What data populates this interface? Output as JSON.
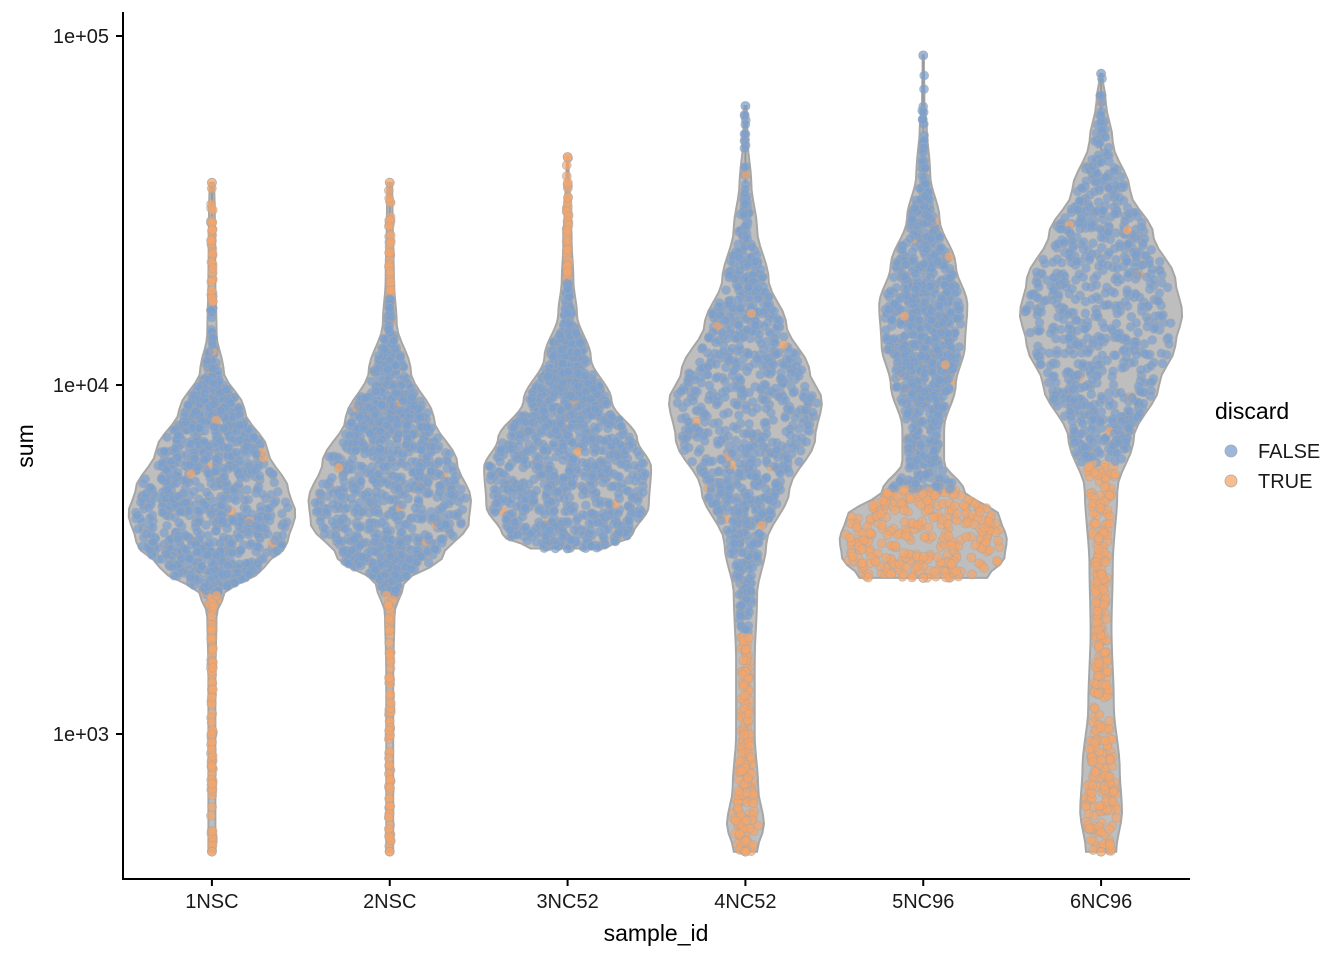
{
  "chart_data": {
    "type": "violin",
    "xlabel": "sample_id",
    "ylabel": "sum",
    "y_scale": "log10",
    "ylim": [
      380,
      115000
    ],
    "y_ticks": [
      {
        "value": 1000,
        "label": "1e+03"
      },
      {
        "value": 10000,
        "label": "1e+04"
      },
      {
        "value": 100000,
        "label": "1e+05"
      }
    ],
    "categories": [
      "1NSC",
      "2NSC",
      "3NC52",
      "4NC52",
      "5NC96",
      "6NC96"
    ],
    "grid": false,
    "legend": {
      "title": "discard",
      "placement": "right",
      "entries": [
        {
          "label": "FALSE",
          "color": "#7b9fcf"
        },
        {
          "label": "TRUE",
          "color": "#f5a56a"
        }
      ]
    },
    "colors": {
      "false": "#7b9fcf",
      "true": "#f5a56a",
      "violin_fill": "#b3b3b3",
      "violin_outline": "#a6a6a6"
    },
    "violins": [
      {
        "sample_id": "1NSC",
        "min": 460,
        "max": 38000,
        "density": [
          [
            460,
            0.03
          ],
          [
            800,
            0.03
          ],
          [
            1500,
            0.03
          ],
          [
            2200,
            0.04
          ],
          [
            2500,
            0.1
          ],
          [
            3000,
            0.45
          ],
          [
            3500,
            0.65
          ],
          [
            4300,
            0.72
          ],
          [
            5000,
            0.66
          ],
          [
            6500,
            0.48
          ],
          [
            8500,
            0.28
          ],
          [
            11000,
            0.1
          ],
          [
            14000,
            0.04
          ],
          [
            20000,
            0.03
          ],
          [
            30000,
            0.025
          ],
          [
            38000,
            0.02
          ]
        ],
        "discard_threshold_low": 2500,
        "discard_threshold_high": 17000
      },
      {
        "sample_id": "2NSC",
        "min": 460,
        "max": 38000,
        "density": [
          [
            460,
            0.03
          ],
          [
            900,
            0.03
          ],
          [
            1500,
            0.03
          ],
          [
            2200,
            0.04
          ],
          [
            2700,
            0.12
          ],
          [
            3200,
            0.45
          ],
          [
            4000,
            0.68
          ],
          [
            4700,
            0.7
          ],
          [
            6000,
            0.58
          ],
          [
            8000,
            0.38
          ],
          [
            11000,
            0.18
          ],
          [
            15000,
            0.06
          ],
          [
            20000,
            0.035
          ],
          [
            30000,
            0.025
          ],
          [
            38000,
            0.02
          ]
        ],
        "discard_threshold_low": 2500,
        "discard_threshold_high": 18000
      },
      {
        "sample_id": "3NC52",
        "min": 3400,
        "max": 45000,
        "density": [
          [
            3400,
            0.32
          ],
          [
            3700,
            0.56
          ],
          [
            4500,
            0.7
          ],
          [
            5800,
            0.72
          ],
          [
            7000,
            0.6
          ],
          [
            9000,
            0.38
          ],
          [
            12000,
            0.2
          ],
          [
            16000,
            0.08
          ],
          [
            20000,
            0.05
          ],
          [
            26000,
            0.035
          ],
          [
            32000,
            0.025
          ],
          [
            40000,
            0.01
          ],
          [
            45000,
            0.005
          ]
        ],
        "discard_threshold_low": 0,
        "discard_threshold_high": 20000
      },
      {
        "sample_id": "4NC52",
        "min": 460,
        "max": 63000,
        "density": [
          [
            460,
            0.1
          ],
          [
            550,
            0.16
          ],
          [
            700,
            0.11
          ],
          [
            1000,
            0.08
          ],
          [
            1600,
            0.08
          ],
          [
            2500,
            0.1
          ],
          [
            3500,
            0.18
          ],
          [
            5000,
            0.38
          ],
          [
            7000,
            0.6
          ],
          [
            9000,
            0.66
          ],
          [
            11000,
            0.55
          ],
          [
            15000,
            0.35
          ],
          [
            20000,
            0.2
          ],
          [
            28000,
            0.1
          ],
          [
            38000,
            0.05
          ],
          [
            50000,
            0.02
          ],
          [
            63000,
            0.01
          ]
        ],
        "discard_threshold_low": 1900,
        "discard_threshold_high": 999999
      },
      {
        "sample_id": "5NC96",
        "min": 2800,
        "max": 88000,
        "density": [
          [
            2800,
            0.55
          ],
          [
            3200,
            0.7
          ],
          [
            3600,
            0.72
          ],
          [
            4200,
            0.66
          ],
          [
            5000,
            0.35
          ],
          [
            6000,
            0.18
          ],
          [
            7500,
            0.18
          ],
          [
            10000,
            0.28
          ],
          [
            13000,
            0.36
          ],
          [
            17000,
            0.38
          ],
          [
            22000,
            0.28
          ],
          [
            30000,
            0.14
          ],
          [
            40000,
            0.06
          ],
          [
            55000,
            0.03
          ],
          [
            65000,
            0.01
          ],
          [
            88000,
            0.005
          ]
        ],
        "discard_threshold_low": 5000,
        "discard_threshold_high": 999999
      },
      {
        "sample_id": "6NC96",
        "min": 460,
        "max": 78000,
        "density": [
          [
            460,
            0.13
          ],
          [
            600,
            0.18
          ],
          [
            800,
            0.16
          ],
          [
            1200,
            0.11
          ],
          [
            2000,
            0.09
          ],
          [
            3000,
            0.1
          ],
          [
            5000,
            0.14
          ],
          [
            7000,
            0.28
          ],
          [
            10000,
            0.5
          ],
          [
            13000,
            0.64
          ],
          [
            16000,
            0.7
          ],
          [
            20000,
            0.64
          ],
          [
            27000,
            0.45
          ],
          [
            36000,
            0.25
          ],
          [
            50000,
            0.1
          ],
          [
            65000,
            0.04
          ],
          [
            78000,
            0.01
          ]
        ],
        "discard_threshold_low": 6000,
        "discard_threshold_high": 999999
      }
    ]
  }
}
